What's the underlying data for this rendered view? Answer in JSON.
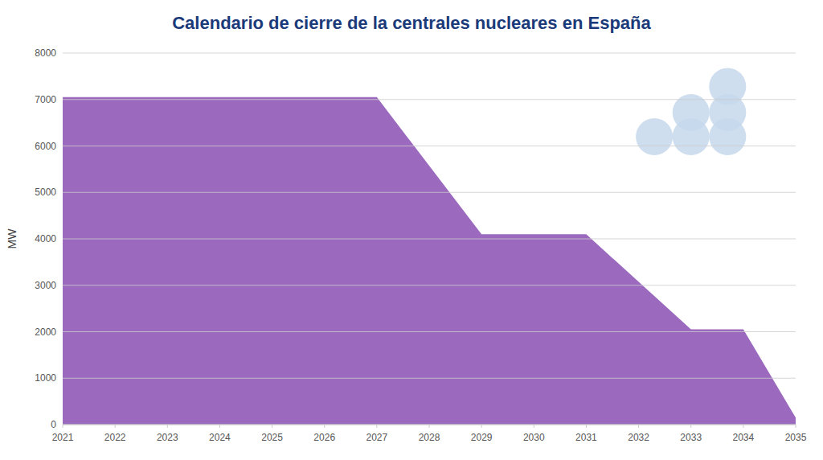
{
  "chart_data": {
    "type": "area",
    "title": "Calendario de cierre de la centrales nucleares en España",
    "y_label": "MW",
    "series": [
      {
        "type": "area",
        "color": "#9b6abf",
        "x": [
          2021,
          2027,
          2029,
          2031,
          2033,
          2034,
          2035
        ],
        "values": [
          7050,
          7050,
          4100,
          4100,
          2050,
          2050,
          150
        ]
      },
      {
        "type": "scatter",
        "color": "#c5d8ec",
        "x": [
          2033.7,
          2033.0,
          2033.7,
          2032.3,
          2033.0,
          2033.7
        ],
        "values": [
          7280,
          6720,
          6720,
          6200,
          6200,
          6200
        ],
        "sizes": [
          1100,
          1100,
          1100,
          1100,
          1100,
          1100
        ]
      }
    ],
    "xlim": [
      2021,
      2035
    ],
    "ylim": [
      0,
      8000
    ],
    "xticks": [
      2021,
      2022,
      2023,
      2024,
      2025,
      2026,
      2027,
      2028,
      2029,
      2030,
      2031,
      2032,
      2033,
      2034,
      2035
    ],
    "yticks": [
      0,
      1000,
      2000,
      3000,
      4000,
      5000,
      6000,
      7000,
      8000
    ],
    "grid": true
  }
}
